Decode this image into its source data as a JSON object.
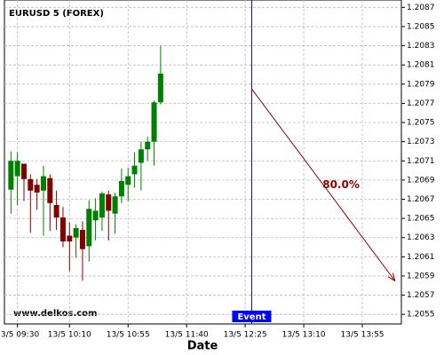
{
  "chart_data": {
    "type": "candlestick",
    "title": "EURUSD 5 (FOREX)",
    "x_label": "Date",
    "watermark": "www.delkos.com",
    "x": [
      "13/5 09:25",
      "13/5 09:30",
      "13/5 09:35",
      "13/5 09:40",
      "13/5 09:45",
      "13/5 09:50",
      "13/5 09:55",
      "13/5 10:00",
      "13/5 10:05",
      "13/5 10:10",
      "13/5 10:15",
      "13/5 10:20",
      "13/5 10:25",
      "13/5 10:30",
      "13/5 10:35",
      "13/5 10:40",
      "13/5 10:45",
      "13/5 10:50",
      "13/5 10:55",
      "13/5 11:00",
      "13/5 11:05",
      "13/5 11:10",
      "13/5 11:15",
      "13/5 11:20"
    ],
    "open": [
      1.2068,
      1.20694,
      1.20707,
      1.20691,
      1.20685,
      1.20679,
      1.20692,
      1.20664,
      1.20651,
      1.20632,
      1.2063,
      1.20638,
      1.20621,
      1.20648,
      1.20651,
      1.20675,
      1.20655,
      1.20673,
      1.20685,
      1.20696,
      1.20708,
      1.20722,
      1.2073,
      1.20771
    ],
    "high": [
      1.2072,
      1.20719,
      1.20707,
      1.20696,
      1.20691,
      1.20705,
      1.20696,
      1.20679,
      1.20662,
      1.20646,
      1.20644,
      1.20647,
      1.20669,
      1.20671,
      1.20678,
      1.20679,
      1.20677,
      1.20702,
      1.20703,
      1.20719,
      1.2073,
      1.20735,
      1.20773,
      1.2083
    ],
    "low": [
      1.20655,
      1.20664,
      1.20668,
      1.20635,
      1.20659,
      1.20632,
      1.20637,
      1.20638,
      1.2062,
      1.20595,
      1.20609,
      1.20585,
      1.20605,
      1.20627,
      1.20637,
      1.20627,
      1.20634,
      1.20666,
      1.20668,
      1.20682,
      1.20679,
      1.2071,
      1.20705,
      1.20769
    ],
    "close": [
      1.2071,
      1.2071,
      1.20691,
      1.20679,
      1.20677,
      1.20694,
      1.20666,
      1.20651,
      1.20626,
      1.20626,
      1.2064,
      1.20618,
      1.2066,
      1.20658,
      1.20676,
      1.20658,
      1.20673,
      1.20689,
      1.20694,
      1.20705,
      1.20722,
      1.2073,
      1.20771,
      1.20801
    ],
    "up_color": "#008000",
    "down_color": "#800000",
    "xlim": [
      "13/5 09:20",
      "13/5 14:25"
    ],
    "xticks": [
      "13/5 09:30",
      "13/5 10:10",
      "13/5 10:55",
      "13/5 11:40",
      "13/5 12:25",
      "13/5 13:10",
      "13/5 13:55"
    ],
    "ylim": [
      1.2054,
      1.20874
    ],
    "yticks": [
      1.2055,
      1.2057,
      1.2059,
      1.2061,
      1.2063,
      1.2065,
      1.2067,
      1.2069,
      1.2071,
      1.2073,
      1.2075,
      1.2077,
      1.2079,
      1.2081,
      1.2083,
      1.2085,
      1.2087
    ],
    "grid": true,
    "event": {
      "x": "13/5 12:30",
      "label": "Event",
      "color": "#0000ff"
    },
    "forecast": {
      "x": [
        "13/5 12:30",
        "13/5 14:20"
      ],
      "y": [
        1.20785,
        1.20585
      ],
      "label": "80.0%",
      "color": "#8b0000"
    }
  }
}
